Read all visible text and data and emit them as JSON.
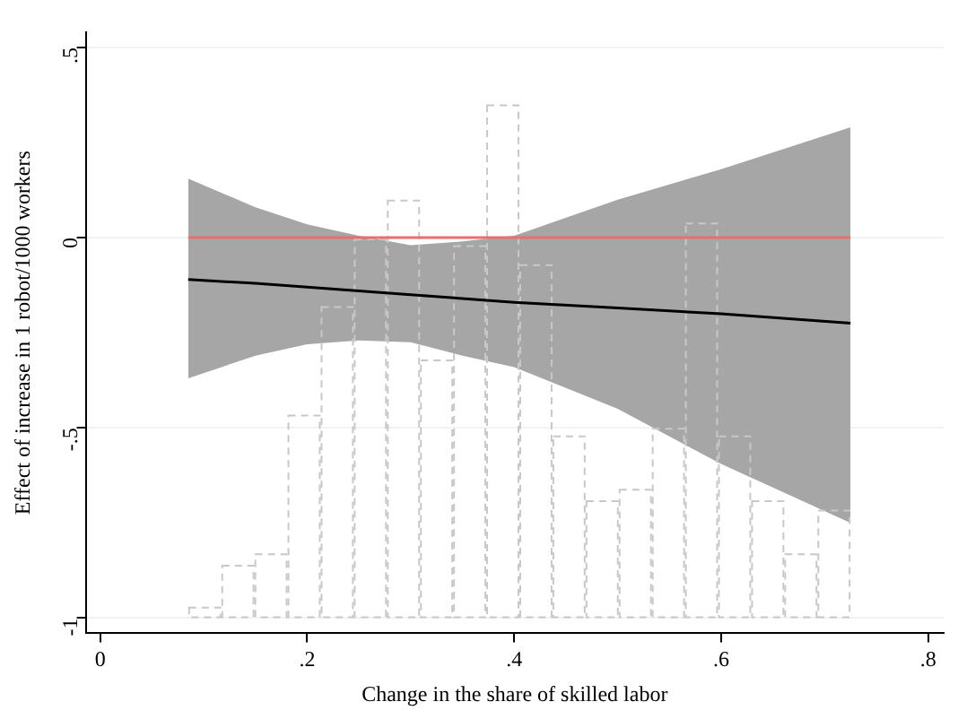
{
  "chart_data": {
    "type": "line",
    "xlabel": "Change in the share of skilled labor",
    "ylabel": "Effect of increase in 1 robot/1000 workers",
    "xlim": [
      -0.014,
      0.815
    ],
    "xticks": [
      0,
      {
        "value": 0.2,
        "label": ".2"
      },
      {
        "value": 0.4,
        "label": ".4"
      },
      {
        "value": 0.6,
        "label": ".6"
      },
      {
        "value": 0.8,
        "label": ".8"
      }
    ],
    "ylim": [
      -1.04,
      0.54
    ],
    "yticks": [
      {
        "value": -1,
        "label": "-1"
      },
      {
        "value": -0.5,
        "label": "-.5"
      },
      0,
      {
        "value": 0.5,
        "label": ".5"
      }
    ],
    "grid": "y",
    "series": [
      {
        "type": "bar",
        "color": "#c8c8c8",
        "line_style": "dashed",
        "x": [
          0.101,
          0.133,
          0.165,
          0.197,
          0.229,
          0.261,
          0.293,
          0.325,
          0.357,
          0.389,
          0.421,
          0.453,
          0.485,
          0.517,
          0.549,
          0.581,
          0.613,
          0.645,
          0.677,
          0.709
        ],
        "base": [
          -1,
          -1,
          -1,
          -1,
          -1,
          -1,
          -1,
          -1,
          -1,
          -1,
          -1,
          -1,
          -1,
          -1,
          -1,
          -1,
          -1,
          -1,
          -1,
          -1
        ],
        "values": [
          0.03,
          0.14,
          0.17,
          0.535,
          0.82,
          1.0,
          1.1,
          0.68,
          0.98,
          1.35,
          0.93,
          0.48,
          0.31,
          0.34,
          0.5,
          1.04,
          0.48,
          0.31,
          0.17,
          0.285
        ]
      },
      {
        "color": "#000000",
        "x": [
          0.085,
          0.15,
          0.2,
          0.25,
          0.3,
          0.35,
          0.4,
          0.5,
          0.6,
          0.725
        ],
        "values": [
          -0.11,
          -0.12,
          -0.13,
          -0.14,
          -0.15,
          -0.16,
          -0.17,
          -0.185,
          -0.2,
          -0.225
        ],
        "lower": [
          -0.37,
          -0.31,
          -0.28,
          -0.27,
          -0.275,
          -0.31,
          -0.34,
          -0.45,
          -0.595,
          -0.75
        ],
        "upper": [
          0.155,
          0.08,
          0.035,
          0.005,
          -0.02,
          -0.01,
          0.005,
          0.1,
          0.18,
          0.29
        ]
      },
      {
        "color": "#e8706a",
        "x": [
          0.085,
          0.725
        ],
        "values": [
          0,
          0
        ]
      }
    ]
  }
}
